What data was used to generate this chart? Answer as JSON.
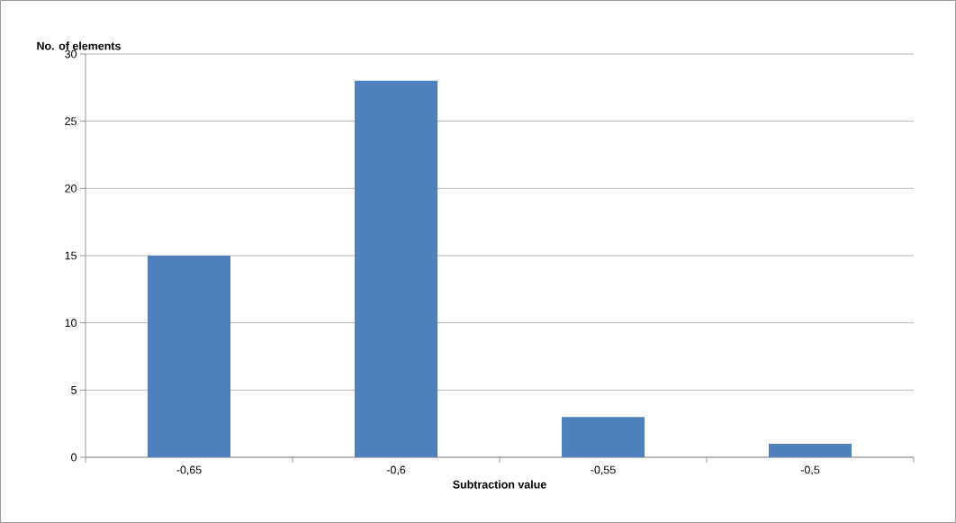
{
  "chart_data": {
    "type": "bar",
    "xlabel": "Subtraction value",
    "ylabel": "No. of elements",
    "categories": [
      "-0,65",
      "-0,6",
      "-0,55",
      "-0,5"
    ],
    "values": [
      15,
      28,
      3,
      1
    ],
    "color": "#4f81bd",
    "ylim": [
      0,
      30
    ],
    "yticks": [
      0,
      5,
      10,
      15,
      20,
      25,
      30
    ],
    "grid": "y"
  }
}
